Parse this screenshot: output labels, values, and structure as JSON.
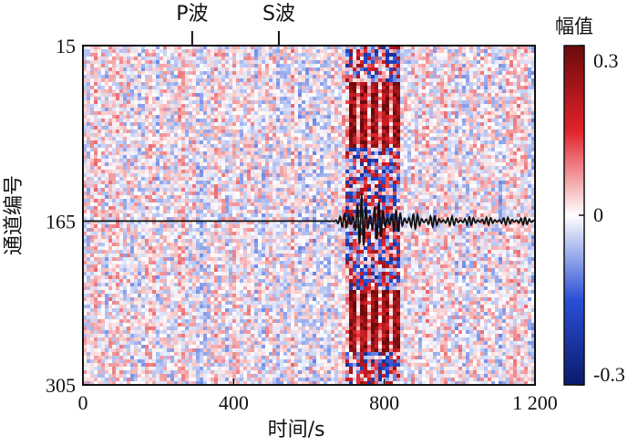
{
  "chart_data": {
    "type": "heatmap",
    "xlabel": "时间/s",
    "ylabel": "通道编号",
    "xlim": [
      0,
      1200
    ],
    "ylim": [
      305,
      15
    ],
    "x_ticks": [
      {
        "value": 0,
        "label": "0"
      },
      {
        "value": 400,
        "label": "400"
      },
      {
        "value": 800,
        "label": "800"
      },
      {
        "value": 1200,
        "label": "1 200"
      }
    ],
    "y_ticks": [
      {
        "value": 15,
        "label": "15"
      },
      {
        "value": 165,
        "label": "165"
      },
      {
        "value": 305,
        "label": "305"
      }
    ],
    "phase_markers": [
      {
        "label": "P波",
        "x": 290
      },
      {
        "label": "S波",
        "x": 520
      }
    ],
    "colorbar": {
      "title": "幅值",
      "range": [
        -0.3,
        0.3
      ],
      "ticks": [
        {
          "value": 0.3,
          "label": "0.3"
        },
        {
          "value": 0,
          "label": "0"
        },
        {
          "value": -0.3,
          "label": "-0.3"
        }
      ],
      "colors": [
        "#0a1a6b",
        "#2a4fd6",
        "#ffffff",
        "#e0222a",
        "#6b0a0a"
      ]
    },
    "waveform_trace": {
      "baseline_channel": 165,
      "onset_time": 640,
      "peak_time": 745,
      "color": "#111111"
    }
  }
}
